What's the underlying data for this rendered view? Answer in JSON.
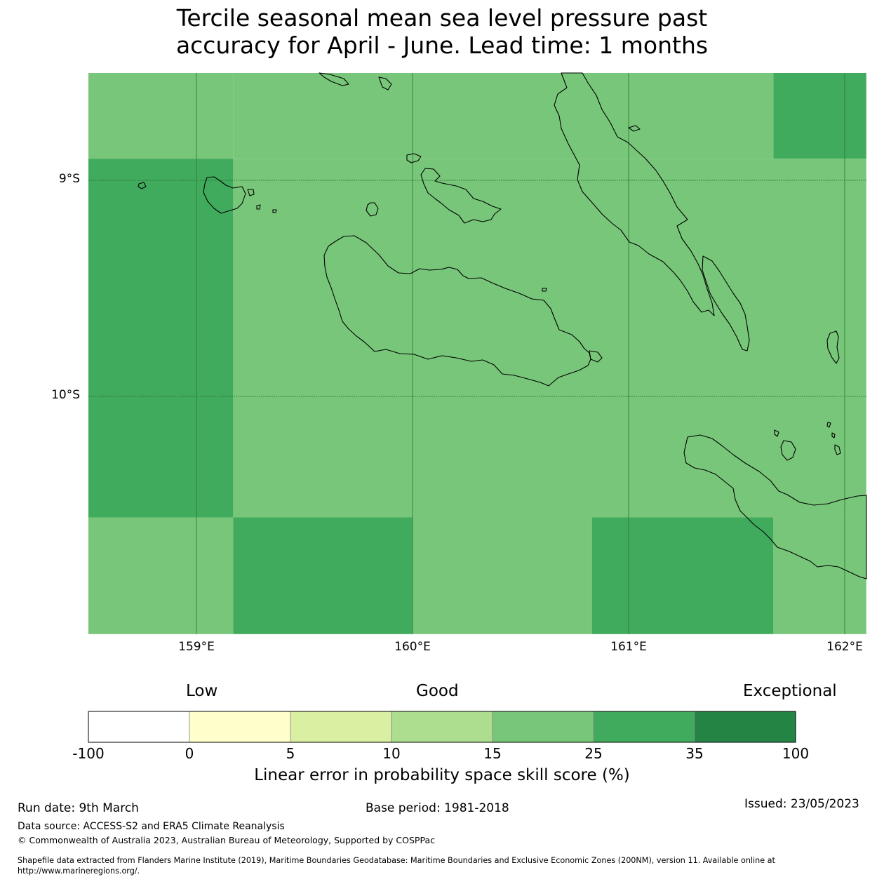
{
  "title": {
    "line1": "Tercile seasonal mean sea level pressure past",
    "line2": "accuracy for April - June. Lead time: 1 months"
  },
  "map": {
    "lat_labels": [
      "9°S",
      "10°S"
    ],
    "lon_labels": [
      "159°E",
      "160°E",
      "161°E",
      "162°E"
    ],
    "ocean_color": "#78c679",
    "coastline_color": "#000000"
  },
  "colorbar": {
    "categories": [
      "Low",
      "Good",
      "Exceptional"
    ],
    "ticks": [
      "-100",
      "0",
      "5",
      "10",
      "15",
      "25",
      "35",
      "100"
    ],
    "colors": [
      "#ffffff",
      "#ffffcc",
      "#d9f0a3",
      "#addd8e",
      "#78c679",
      "#41ab5d",
      "#238443"
    ],
    "label": "Linear error in probability space skill score (%)"
  },
  "chart_data": {
    "type": "heatmap",
    "title": "Tercile seasonal mean sea level pressure past accuracy for April - June. Lead time: 1 months",
    "colorbar_label": "Linear error in probability space skill score (%)",
    "bins": [
      {
        "range": [
          -100,
          0
        ],
        "color": "#ffffff"
      },
      {
        "range": [
          0,
          5
        ],
        "color": "#ffffcc"
      },
      {
        "range": [
          5,
          10
        ],
        "color": "#d9f0a3"
      },
      {
        "range": [
          10,
          15
        ],
        "color": "#addd8e"
      },
      {
        "range": [
          15,
          25
        ],
        "color": "#78c679"
      },
      {
        "range": [
          25,
          35
        ],
        "color": "#41ab5d"
      },
      {
        "range": [
          35,
          100
        ],
        "color": "#238443"
      }
    ],
    "lon_range": [
      158.5,
      162.1
    ],
    "lat_range": [
      -11.1,
      -8.5
    ],
    "grid_resolution_deg": 0.833,
    "cells": [
      {
        "lon": [
          158.5,
          159.17
        ],
        "lat": [
          -8.9,
          -8.5
        ],
        "bin": "15-25"
      },
      {
        "lon": [
          159.17,
          161.67
        ],
        "lat": [
          -8.9,
          -8.5
        ],
        "bin": "15-25"
      },
      {
        "lon": [
          161.67,
          162.1
        ],
        "lat": [
          -8.9,
          -8.5
        ],
        "bin": "25-35"
      },
      {
        "lon": [
          158.5,
          159.17
        ],
        "lat": [
          -10.56,
          -8.9
        ],
        "bin": "25-35"
      },
      {
        "lon": [
          159.17,
          162.1
        ],
        "lat": [
          -10.56,
          -8.9
        ],
        "bin": "15-25"
      },
      {
        "lon": [
          158.5,
          159.17
        ],
        "lat": [
          -11.1,
          -10.56
        ],
        "bin": "15-25"
      },
      {
        "lon": [
          159.17,
          160.0
        ],
        "lat": [
          -11.1,
          -10.56
        ],
        "bin": "25-35"
      },
      {
        "lon": [
          160.0,
          160.83
        ],
        "lat": [
          -11.1,
          -10.56
        ],
        "bin": "15-25"
      },
      {
        "lon": [
          160.83,
          161.67
        ],
        "lat": [
          -11.1,
          -10.56
        ],
        "bin": "25-35"
      },
      {
        "lon": [
          161.67,
          162.1
        ],
        "lat": [
          -11.1,
          -10.56
        ],
        "bin": "15-25"
      }
    ]
  },
  "footer": {
    "run_date": "Run date: 9th March",
    "base_period": "Base period: 1981-2018",
    "issued": "Issued: 23/05/2023",
    "data_source": "Data source: ACCESS-S2 and ERA5 Climate Reanalysis",
    "copyright": "© Commonwealth of Australia 2023, Australian Bureau of Meteorology, Supported by COSPPac",
    "shapefile_line1": "Shapefile data extracted from Flanders Marine Institute (2019), Maritime Boundaries Geodatabase: Maritime Boundaries and Exclusive Economic Zones (200NM), version 11. Available online at",
    "shapefile_line2": "http://www.marineregions.org/."
  }
}
